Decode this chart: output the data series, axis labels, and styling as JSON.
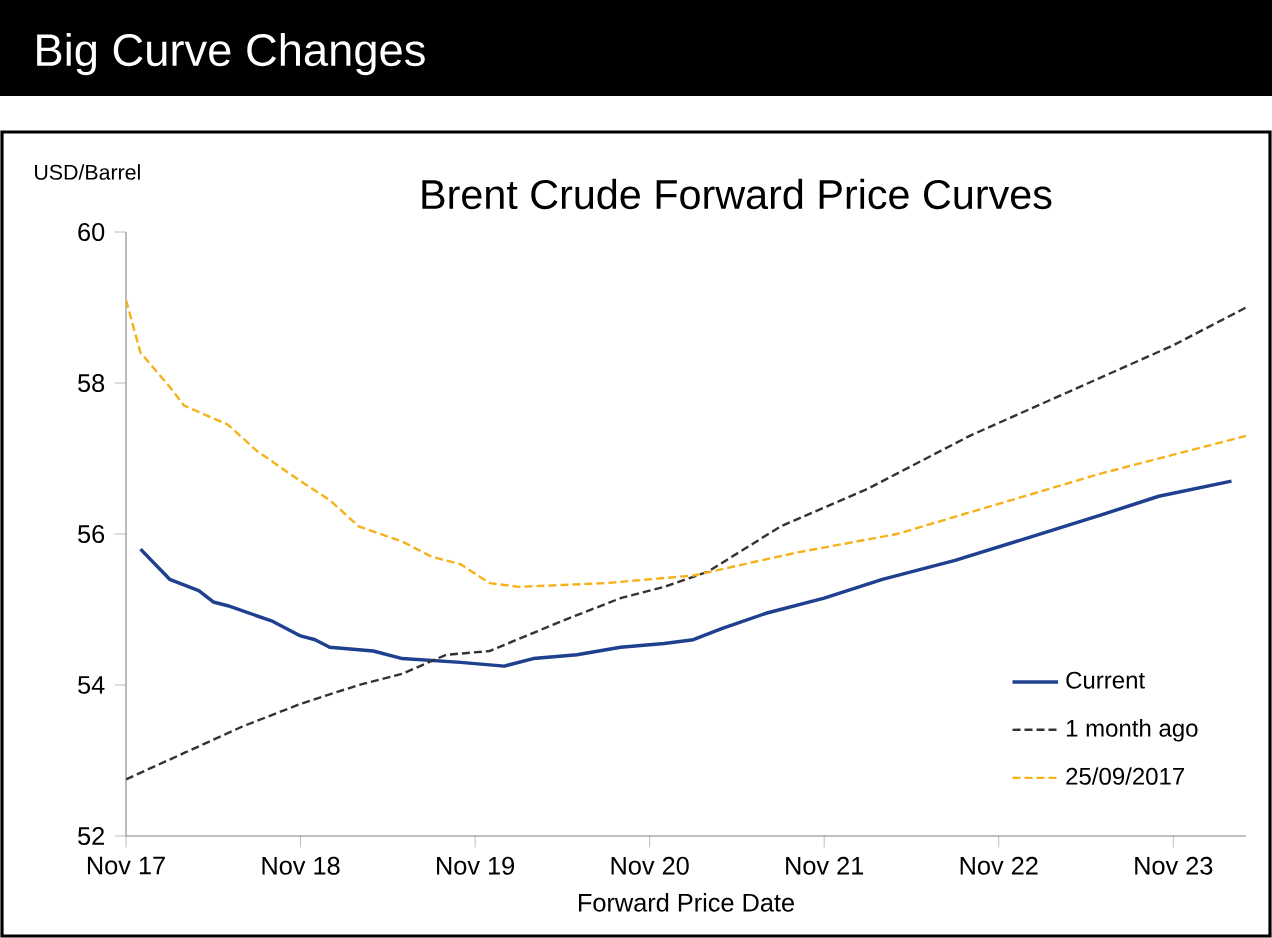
{
  "chart_data": {
    "type": "line",
    "title": "Big Curve Changes",
    "subtitle": "Brent Crude Forward Price Curves",
    "xlabel": "Forward Price Date",
    "ylabel": "USD/Barrel",
    "xlim": [
      "2017-11",
      "2024-04"
    ],
    "xticks": [
      {
        "value": "2017-11",
        "label": "Nov 17"
      },
      {
        "value": "2018-11",
        "label": "Nov 18"
      },
      {
        "value": "2019-11",
        "label": "Nov 19"
      },
      {
        "value": "2020-11",
        "label": "Nov 20"
      },
      {
        "value": "2021-11",
        "label": "Nov 21"
      },
      {
        "value": "2022-11",
        "label": "Nov 22"
      },
      {
        "value": "2023-11",
        "label": "Nov 23"
      }
    ],
    "ylim": [
      52,
      60
    ],
    "yticks": [
      52,
      54,
      56,
      58,
      60
    ],
    "grid": false,
    "legend": "bottom right",
    "marker": "none",
    "series": [
      {
        "name": "Current",
        "color": "#1f3f8f",
        "line_style": "solid",
        "x": [
          "2017-12",
          "2018-02",
          "2018-04",
          "2018-05",
          "2018-06",
          "2018-09",
          "2018-11",
          "2018-12",
          "2019-01",
          "2019-04",
          "2019-06",
          "2019-10",
          "2020-01",
          "2020-03",
          "2020-06",
          "2020-09",
          "2020-12",
          "2021-02",
          "2021-04",
          "2021-07",
          "2021-11",
          "2022-03",
          "2022-08",
          "2023-01",
          "2023-06",
          "2023-10",
          "2024-03"
        ],
        "values": [
          55.8,
          55.4,
          55.25,
          55.1,
          55.05,
          54.85,
          54.65,
          54.6,
          54.5,
          54.45,
          54.35,
          54.3,
          54.25,
          54.35,
          54.4,
          54.5,
          54.55,
          54.6,
          54.75,
          54.95,
          55.15,
          55.4,
          55.65,
          55.95,
          56.25,
          56.5,
          56.7
        ]
      },
      {
        "name": "1 month ago",
        "color": "#333333",
        "line_style": "dashed",
        "x": [
          "2017-11",
          "2018-03",
          "2018-07",
          "2018-11",
          "2019-03",
          "2019-06",
          "2019-09",
          "2019-12",
          "2020-05",
          "2020-09",
          "2020-12",
          "2021-03",
          "2021-08",
          "2022-02",
          "2022-09",
          "2023-04",
          "2023-11",
          "2024-04"
        ],
        "values": [
          52.75,
          53.1,
          53.45,
          53.75,
          54.0,
          54.15,
          54.4,
          54.45,
          54.85,
          55.15,
          55.3,
          55.5,
          56.1,
          56.6,
          57.3,
          57.9,
          58.5,
          59.0
        ]
      },
      {
        "name": "25/09/2017",
        "color": "#f5b21b",
        "line_style": "dashed",
        "x": [
          "2017-11",
          "2017-12",
          "2018-02",
          "2018-03",
          "2018-06",
          "2018-08",
          "2018-11",
          "2019-01",
          "2019-03",
          "2019-06",
          "2019-08",
          "2019-10",
          "2019-12",
          "2020-02",
          "2020-08",
          "2021-02",
          "2021-09",
          "2022-04",
          "2022-11",
          "2023-06",
          "2024-04"
        ],
        "values": [
          59.1,
          58.4,
          57.95,
          57.7,
          57.45,
          57.1,
          56.7,
          56.45,
          56.1,
          55.9,
          55.7,
          55.6,
          55.35,
          55.3,
          55.35,
          55.45,
          55.75,
          56.0,
          56.4,
          56.8,
          57.3
        ]
      }
    ]
  }
}
